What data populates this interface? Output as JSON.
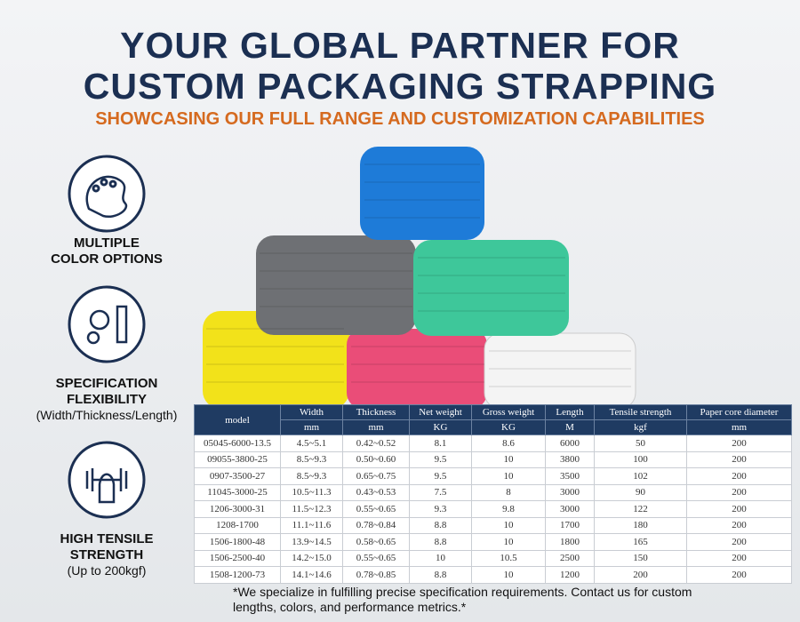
{
  "header": {
    "title_lines": [
      "YOUR GLOBAL PARTNER FOR",
      "CUSTOM PACKAGING STRAPPING"
    ],
    "subtitle": "SHOWCASING OUR FULL RANGE AND CUSTOMIZATION CAPABILITIES"
  },
  "features": [
    {
      "label_lines": [
        "MULTIPLE",
        "COLOR OPTIONS"
      ]
    },
    {
      "label_lines": [
        "SPECIFICATION",
        "FLEXIBILITY"
      ],
      "note": "(Width/Thickness/Length)"
    },
    {
      "label_lines": [
        "HIGH TENSILE",
        "STRENGTH"
      ],
      "note": "(Up to 200kgf)"
    }
  ],
  "table": {
    "columns": [
      "model",
      "Width",
      "Thickness",
      "Net weight",
      "Gross weight",
      "Length",
      "Tensile strength",
      "Paper core diameter"
    ],
    "units": [
      "mm",
      "mm",
      "KG",
      "KG",
      "M",
      "kgf",
      "mm"
    ],
    "rows": [
      [
        "05045-6000-13.5",
        "4.5~5.1",
        "0.42~0.52",
        "8.1",
        "8.6",
        "6000",
        "50",
        "200"
      ],
      [
        "09055-3800-25",
        "8.5~9.3",
        "0.50~0.60",
        "9.5",
        "10",
        "3800",
        "100",
        "200"
      ],
      [
        "0907-3500-27",
        "8.5~9.3",
        "0.65~0.75",
        "9.5",
        "10",
        "3500",
        "102",
        "200"
      ],
      [
        "11045-3000-25",
        "10.5~11.3",
        "0.43~0.53",
        "7.5",
        "8",
        "3000",
        "90",
        "200"
      ],
      [
        "1206-3000-31",
        "11.5~12.3",
        "0.55~0.65",
        "9.3",
        "9.8",
        "3000",
        "122",
        "200"
      ],
      [
        "1208-1700",
        "11.1~11.6",
        "0.78~0.84",
        "8.8",
        "10",
        "1700",
        "180",
        "200"
      ],
      [
        "1506-1800-48",
        "13.9~14.5",
        "0.58~0.65",
        "8.8",
        "10",
        "1800",
        "165",
        "200"
      ],
      [
        "1506-2500-40",
        "14.2~15.0",
        "0.55~0.65",
        "10",
        "10.5",
        "2500",
        "150",
        "200"
      ],
      [
        "1508-1200-73",
        "14.1~14.6",
        "0.78~0.85",
        "8.8",
        "10",
        "1200",
        "200",
        "200"
      ]
    ]
  },
  "footnote_lines": [
    "*We specialize in fulfilling precise specification requirements. Contact us for custom",
    "lengths, colors, and performance metrics.*"
  ]
}
